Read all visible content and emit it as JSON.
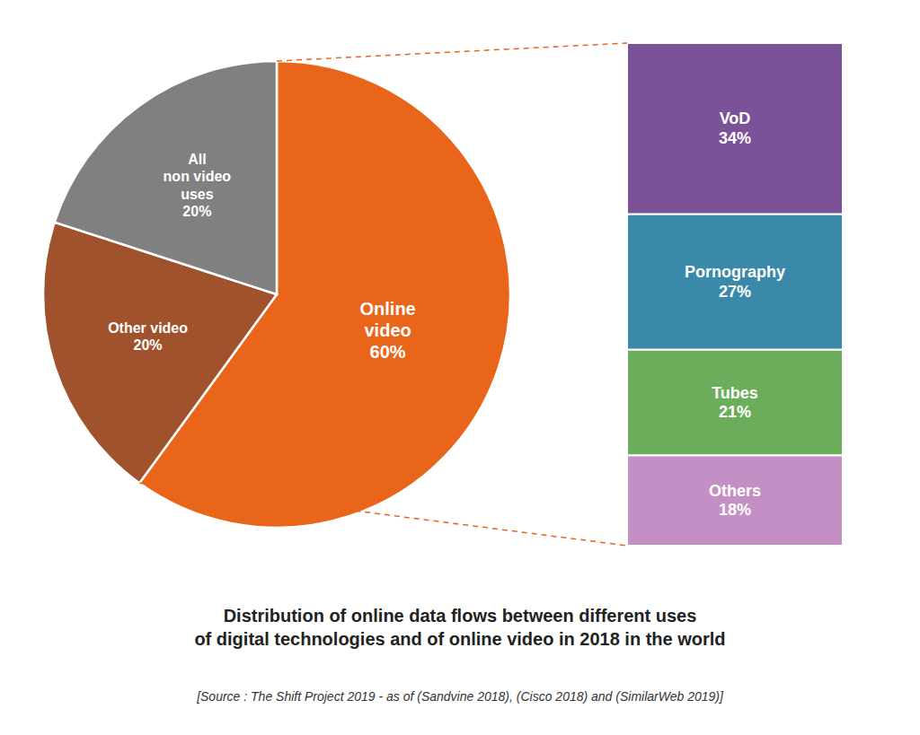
{
  "chart_data": [
    {
      "type": "pie",
      "title": "Distribution of online data flows between different uses\nof digital technologies and of online video in 2018 in the world",
      "annotations": [
        "[Source : The Shift Project 2019 - as of (Sandvine 2018), (Cisco 2018) and (SimilarWeb 2019)]"
      ],
      "values": [
        60,
        20,
        20
      ],
      "value_labels": [
        "Online\nvideo\n60%",
        "Other video\n20%",
        "All\nnon video\nuses\n20%"
      ],
      "colors": [
        "#E8651A",
        "#A0522D",
        "#808080"
      ],
      "data_labels": true
    },
    {
      "type": "bar",
      "stacked": true,
      "values": [
        18,
        21,
        27,
        34
      ],
      "value_labels": [
        "Others\n18%",
        "Tubes\n21%",
        "Pornography\n27%",
        "VoD\n34%"
      ],
      "colors": [
        "#C48FC4",
        "#6BAD5B",
        "#3A89A8",
        "#7B5298"
      ],
      "ylim": [
        0,
        100
      ],
      "tick_labels": false,
      "data_labels": true
    }
  ]
}
